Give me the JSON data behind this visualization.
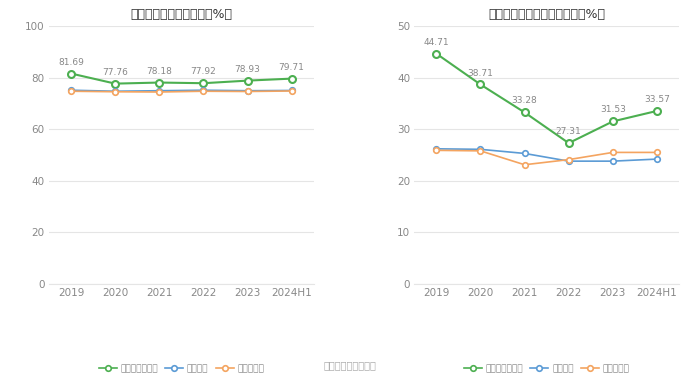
{
  "chart1": {
    "title": "近年来资产负债率情况（%）",
    "x_labels": [
      "2019",
      "2020",
      "2021",
      "2022",
      "2023",
      "2024H1"
    ],
    "company": [
      81.69,
      77.76,
      78.18,
      77.92,
      78.93,
      79.71
    ],
    "industry_avg": [
      75.2,
      74.8,
      75.0,
      75.2,
      75.0,
      75.1
    ],
    "industry_med": [
      74.8,
      74.6,
      74.5,
      74.8,
      74.7,
      74.9
    ],
    "ylim": [
      0,
      100
    ],
    "yticks": [
      0,
      20,
      40,
      60,
      80,
      100
    ],
    "legend": [
      "公司资产负债率",
      "行业均值",
      "行业中位数"
    ]
  },
  "chart2": {
    "title": "近年来有息资产负债率情况（%）",
    "x_labels": [
      "2019",
      "2020",
      "2021",
      "2022",
      "2023",
      "2024H1"
    ],
    "company": [
      44.71,
      38.71,
      33.28,
      27.31,
      31.53,
      33.57
    ],
    "industry_avg": [
      26.2,
      26.1,
      25.3,
      23.8,
      23.8,
      24.2
    ],
    "industry_med": [
      25.9,
      25.8,
      23.1,
      24.1,
      25.5,
      25.5
    ],
    "ylim": [
      0,
      50
    ],
    "yticks": [
      0,
      10,
      20,
      30,
      40,
      50
    ],
    "legend": [
      "有息资产负债率",
      "行业均值",
      "行业中位数"
    ]
  },
  "green_color": "#4caf50",
  "blue_color": "#5b9bd5",
  "orange_color": "#f4a460",
  "label_color": "#888888",
  "grid_color": "#e5e5e5",
  "bg_color": "#ffffff",
  "source_text": "数据来源：恒生聚源",
  "source_color": "#aaaaaa"
}
